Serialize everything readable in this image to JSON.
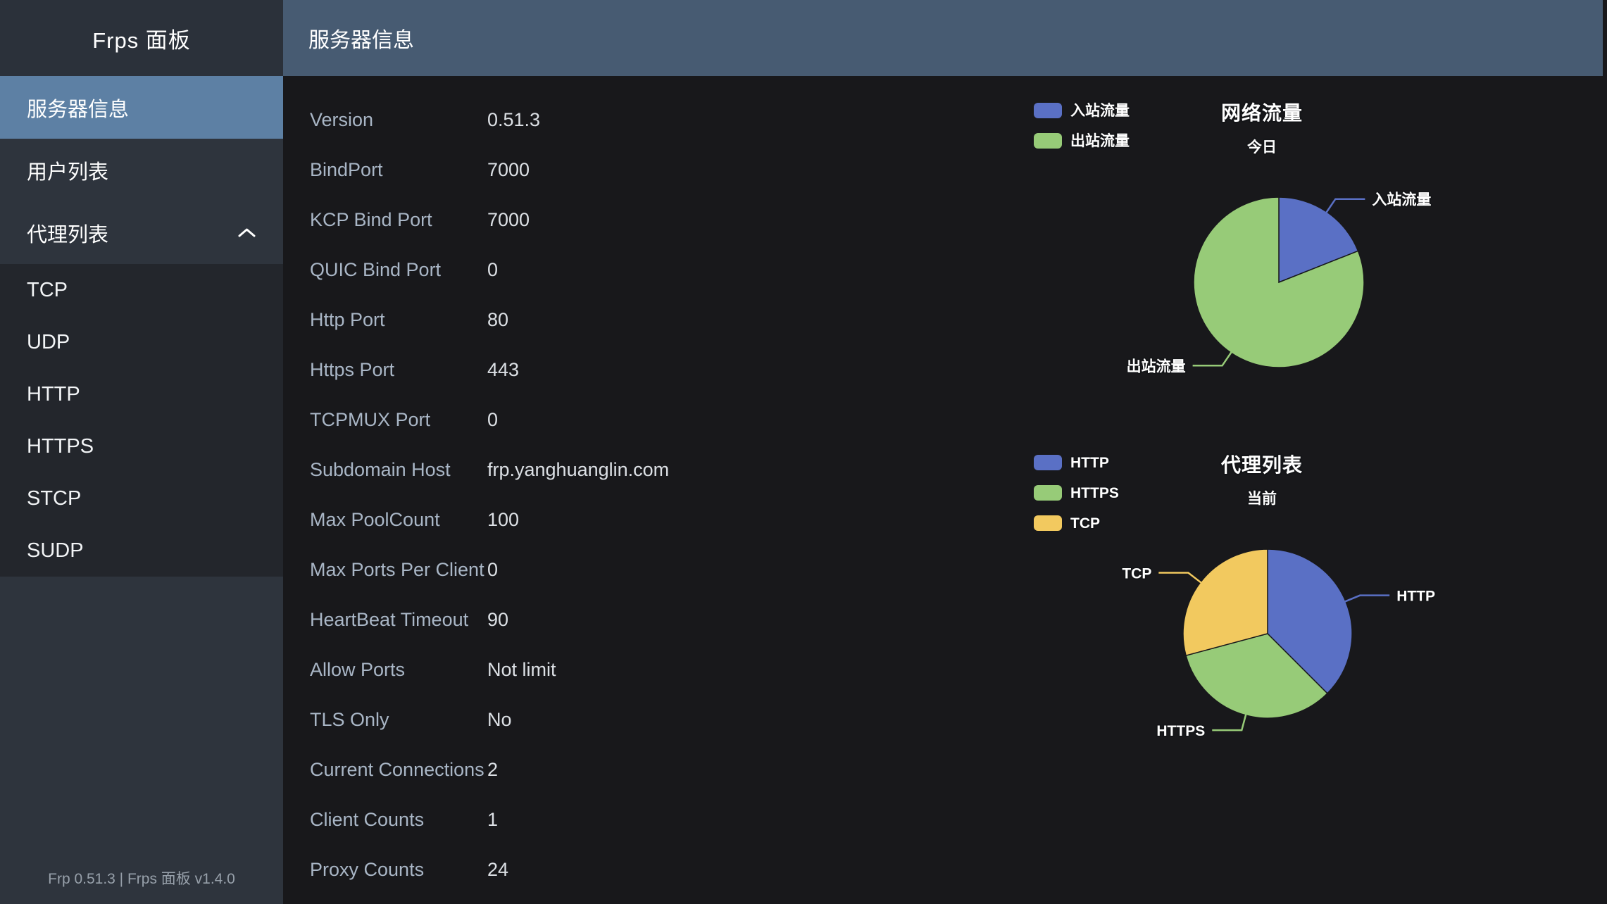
{
  "app": {
    "sidebar_title": "Frps 面板",
    "footer_version": "Frp 0.51.3 | Frps 面板 v1.4.0"
  },
  "header": {
    "title": "服务器信息"
  },
  "sidebar": {
    "items": [
      {
        "label": "服务器信息",
        "selected": true,
        "expandable": false
      },
      {
        "label": "用户列表",
        "selected": false,
        "expandable": false
      },
      {
        "label": "代理列表",
        "selected": false,
        "expandable": true,
        "expanded": true
      }
    ],
    "subitems": [
      "TCP",
      "UDP",
      "HTTP",
      "HTTPS",
      "STCP",
      "SUDP"
    ]
  },
  "server_info": {
    "rows": [
      {
        "label": "Version",
        "value": "0.51.3"
      },
      {
        "label": "BindPort",
        "value": "7000"
      },
      {
        "label": "KCP Bind Port",
        "value": "7000"
      },
      {
        "label": "QUIC Bind Port",
        "value": "0"
      },
      {
        "label": "Http Port",
        "value": "80"
      },
      {
        "label": "Https Port",
        "value": "443"
      },
      {
        "label": "TCPMUX Port",
        "value": "0"
      },
      {
        "label": "Subdomain Host",
        "value": "frp.yanghuanglin.com"
      },
      {
        "label": "Max PoolCount",
        "value": "100"
      },
      {
        "label": "Max Ports Per Client",
        "value": "0"
      },
      {
        "label": "HeartBeat Timeout",
        "value": "90"
      },
      {
        "label": "Allow Ports",
        "value": "Not limit"
      },
      {
        "label": "TLS Only",
        "value": "No"
      },
      {
        "label": "Current Connections",
        "value": "2"
      },
      {
        "label": "Client Counts",
        "value": "1"
      },
      {
        "label": "Proxy Counts",
        "value": "24"
      }
    ]
  },
  "chart_data": [
    {
      "type": "pie",
      "title": "网络流量",
      "subtitle": "今日",
      "labels": [
        "入站流量",
        "出站流量"
      ],
      "values": [
        19,
        81
      ],
      "value_unit": "percent (estimated from arc angles; absolute traffic values not shown)",
      "colors": [
        "#5a70c5",
        "#97cb78"
      ],
      "legend_position": "top-left",
      "title_position": "top-center",
      "labels_outside_with_leader_lines": true
    },
    {
      "type": "pie",
      "title": "代理列表",
      "subtitle": "当前",
      "labels": [
        "HTTP",
        "HTTPS",
        "TCP"
      ],
      "values": [
        9,
        8,
        7
      ],
      "value_unit": "proxies (total 24, matches Proxy Counts)",
      "colors": [
        "#5a70c5",
        "#97cb78",
        "#f2c95f"
      ],
      "legend_position": "top-left",
      "title_position": "top-center",
      "labels_outside_with_leader_lines": true
    }
  ],
  "colors": {
    "accent_blue": "#5a70c5",
    "accent_green": "#97cb78",
    "accent_yellow": "#f2c95f",
    "header_bg": "#475b72",
    "sidebar_bg": "#2e343d",
    "sidebar_title_bg": "#2b313a",
    "submenu_bg": "#23262c",
    "selected_item_bg": "#5d80a4",
    "content_bg": "#18181b",
    "table_label": "#a9b6c6",
    "table_value": "#dce0e5"
  }
}
